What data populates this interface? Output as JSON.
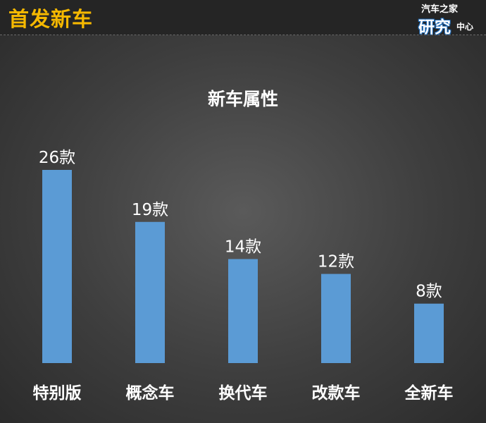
{
  "header": {
    "title": "首发新车"
  },
  "logo": {
    "top_text": "汽车之家",
    "main_text": "研究",
    "sub_text": "中心"
  },
  "chart_data": {
    "type": "bar",
    "title": "新车属性",
    "categories": [
      "特别版",
      "概念车",
      "换代车",
      "改款车",
      "全新车"
    ],
    "values": [
      26,
      19,
      14,
      12,
      8
    ],
    "value_labels": [
      "26款",
      "19款",
      "14款",
      "12款",
      "8款"
    ],
    "unit": "款",
    "ylim": [
      0,
      26
    ],
    "grid": false,
    "legend": "none",
    "bar_color": "#5b9bd5"
  }
}
